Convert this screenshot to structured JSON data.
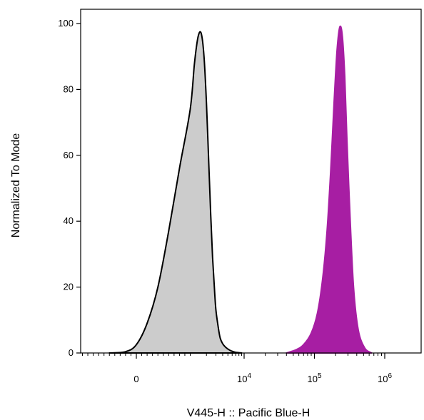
{
  "chart_data": {
    "type": "area",
    "title": "",
    "xlabel": "V445-H :: Pacific Blue-H",
    "ylabel": "Normalized To Mode",
    "x_scale": "biexponential",
    "ylim": [
      0,
      100
    ],
    "y_ticks": [
      0,
      20,
      40,
      60,
      80,
      100
    ],
    "x_ticks": [
      {
        "label": "0",
        "base": "0",
        "exp": ""
      },
      {
        "label": "10^4",
        "base": "10",
        "exp": "4"
      },
      {
        "label": "10^5",
        "base": "10",
        "exp": "5"
      },
      {
        "label": "10^6",
        "base": "10",
        "exp": "6"
      }
    ],
    "series": [
      {
        "fill": "#cccccc",
        "stroke": "#000000",
        "x": [
          -500,
          -200,
          0,
          200,
          400,
          600,
          800,
          1000,
          1200,
          1400,
          1600,
          1800,
          2000,
          2200,
          2400,
          2600,
          2800,
          3000,
          3300,
          3600,
          4000,
          4500,
          5000,
          5800,
          7000,
          9000
        ],
        "y": [
          0,
          0.4,
          2.5,
          9,
          20,
          37,
          56,
          74,
          88,
          96,
          97,
          90,
          76,
          58,
          42,
          29,
          20,
          13,
          8,
          4.5,
          2.8,
          1.8,
          1.2,
          0.6,
          0.2,
          0
        ]
      },
      {
        "fill": "#a71ea3",
        "stroke": "#a71ea3",
        "x": [
          40000,
          55000,
          70000,
          90000,
          110000,
          130000,
          150000,
          170000,
          190000,
          210000,
          230000,
          250000,
          270000,
          290000,
          320000,
          360000,
          420000,
          520000,
          650000
        ],
        "y": [
          0,
          1,
          2.5,
          6,
          12,
          22,
          36,
          55,
          76,
          92,
          99,
          96,
          84,
          65,
          42,
          20,
          7,
          1.5,
          0
        ]
      }
    ]
  }
}
